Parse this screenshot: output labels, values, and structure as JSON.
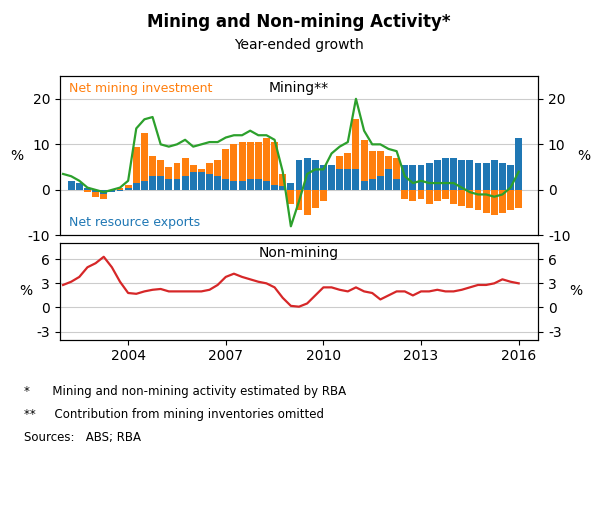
{
  "title": "Mining and Non-mining Activity*",
  "subtitle": "Year-ended growth",
  "notes": [
    "*      Mining and non-mining activity estimated by RBA",
    "**     Contribution from mining inventories omitted",
    "Sources:   ABS; RBA"
  ],
  "chart_data": [
    {
      "type": "bar",
      "title": "Mining**",
      "ylabel": "%",
      "y2label": "%",
      "xlim": [
        2001.9,
        2016.6
      ],
      "ylim": [
        -10,
        25
      ],
      "yticks": [
        -10,
        0,
        10,
        20
      ],
      "y2lim": [
        -10,
        25
      ],
      "y2ticks": [
        -10,
        0,
        10,
        20
      ],
      "grid": true,
      "tick_labels": "y",
      "series": [
        {
          "name": "Net mining investment",
          "type": "bar",
          "x": [
            2002.25,
            2002.5,
            2002.75,
            2003.0,
            2003.25,
            2003.5,
            2003.75,
            2004.0,
            2004.25,
            2004.5,
            2004.75,
            2005.0,
            2005.25,
            2005.5,
            2005.75,
            2006.0,
            2006.25,
            2006.5,
            2006.75,
            2007.0,
            2007.25,
            2007.5,
            2007.75,
            2008.0,
            2008.25,
            2008.5,
            2008.75,
            2009.0,
            2009.25,
            2009.5,
            2009.75,
            2010.0,
            2010.25,
            2010.5,
            2010.75,
            2011.0,
            2011.25,
            2011.5,
            2011.75,
            2012.0,
            2012.25,
            2012.5,
            2012.75,
            2013.0,
            2013.25,
            2013.5,
            2013.75,
            2014.0,
            2014.25,
            2014.5,
            2014.75,
            2015.0,
            2015.25,
            2015.5,
            2015.75,
            2016.0
          ],
          "values": [
            1.5,
            0.5,
            -0.5,
            -1.5,
            -2.0,
            -0.5,
            0.5,
            1.0,
            9.5,
            12.5,
            7.5,
            6.5,
            5.0,
            6.0,
            7.0,
            5.5,
            4.5,
            6.0,
            6.5,
            9.0,
            10.0,
            10.5,
            10.5,
            10.5,
            11.5,
            10.5,
            3.5,
            -3.0,
            -4.5,
            -5.5,
            -4.0,
            -2.5,
            5.5,
            7.5,
            8.0,
            15.5,
            11.0,
            8.5,
            8.5,
            7.5,
            7.0,
            -2.0,
            -2.5,
            -2.0,
            -3.0,
            -2.5,
            -2.0,
            -3.0,
            -3.5,
            -4.0,
            -4.5,
            -5.0,
            -5.5,
            -5.0,
            -4.5,
            -4.0
          ]
        },
        {
          "name": "Net resource exports",
          "type": "bar",
          "x": [
            2002.25,
            2002.5,
            2002.75,
            2003.0,
            2003.25,
            2003.5,
            2003.75,
            2004.0,
            2004.25,
            2004.5,
            2004.75,
            2005.0,
            2005.25,
            2005.5,
            2005.75,
            2006.0,
            2006.25,
            2006.5,
            2006.75,
            2007.0,
            2007.25,
            2007.5,
            2007.75,
            2008.0,
            2008.25,
            2008.5,
            2008.75,
            2009.0,
            2009.25,
            2009.5,
            2009.75,
            2010.0,
            2010.25,
            2010.5,
            2010.75,
            2011.0,
            2011.25,
            2011.5,
            2011.75,
            2012.0,
            2012.25,
            2012.5,
            2012.75,
            2013.0,
            2013.25,
            2013.5,
            2013.75,
            2014.0,
            2014.25,
            2014.5,
            2014.75,
            2015.0,
            2015.25,
            2015.5,
            2015.75,
            2016.0
          ],
          "values": [
            2.0,
            1.5,
            0.5,
            -0.5,
            -1.0,
            -0.5,
            -0.2,
            0.5,
            1.5,
            2.0,
            3.0,
            3.0,
            2.5,
            2.5,
            3.0,
            4.0,
            4.0,
            3.5,
            3.0,
            2.5,
            2.0,
            2.0,
            2.5,
            2.5,
            2.0,
            1.0,
            0.8,
            1.5,
            6.5,
            7.0,
            6.5,
            5.5,
            5.5,
            4.5,
            4.5,
            4.5,
            2.0,
            2.5,
            3.0,
            4.5,
            2.5,
            5.5,
            5.5,
            5.5,
            6.0,
            6.5,
            7.0,
            7.0,
            6.5,
            6.5,
            6.0,
            6.0,
            6.5,
            6.0,
            5.5,
            11.5
          ]
        },
        {
          "type": "line",
          "x": [
            2002.0,
            2002.25,
            2002.5,
            2002.75,
            2003.0,
            2003.25,
            2003.5,
            2003.75,
            2004.0,
            2004.25,
            2004.5,
            2004.75,
            2005.0,
            2005.25,
            2005.5,
            2005.75,
            2006.0,
            2006.25,
            2006.5,
            2006.75,
            2007.0,
            2007.25,
            2007.5,
            2007.75,
            2008.0,
            2008.25,
            2008.5,
            2008.75,
            2009.0,
            2009.25,
            2009.5,
            2009.75,
            2010.0,
            2010.25,
            2010.5,
            2010.75,
            2011.0,
            2011.25,
            2011.5,
            2011.75,
            2012.0,
            2012.25,
            2012.5,
            2012.75,
            2013.0,
            2013.25,
            2013.5,
            2013.75,
            2014.0,
            2014.25,
            2014.5,
            2014.75,
            2015.0,
            2015.25,
            2015.5,
            2015.75,
            2016.0
          ],
          "values": [
            3.5,
            3.0,
            2.0,
            0.5,
            0.0,
            -0.5,
            0.0,
            0.5,
            2.0,
            13.5,
            15.5,
            16.0,
            10.0,
            9.5,
            10.0,
            11.0,
            9.5,
            10.0,
            10.5,
            10.5,
            11.5,
            12.0,
            12.0,
            13.0,
            12.0,
            12.0,
            11.0,
            4.0,
            -8.0,
            -2.5,
            3.5,
            4.5,
            4.5,
            8.0,
            9.5,
            10.5,
            20.0,
            13.0,
            10.0,
            10.0,
            9.0,
            8.5,
            3.0,
            1.5,
            2.0,
            1.5,
            1.5,
            1.5,
            1.5,
            0.5,
            -0.5,
            -1.0,
            -1.0,
            -1.5,
            -1.0,
            0.5,
            4.0
          ]
        }
      ]
    },
    {
      "type": "line",
      "title": "Non-mining",
      "ylabel": "%",
      "y2label": "%",
      "xlim": [
        2001.9,
        2016.6
      ],
      "xticks": [
        2004,
        2007,
        2010,
        2013,
        2016
      ],
      "ylim": [
        -4,
        8
      ],
      "yticks": [
        -3,
        0,
        3,
        6
      ],
      "y2lim": [
        -4,
        8
      ],
      "y2ticks": [
        -3,
        0,
        3,
        6
      ],
      "grid": true,
      "x": [
        2002.0,
        2002.25,
        2002.5,
        2002.75,
        2003.0,
        2003.25,
        2003.5,
        2003.75,
        2004.0,
        2004.25,
        2004.5,
        2004.75,
        2005.0,
        2005.25,
        2005.5,
        2005.75,
        2006.0,
        2006.25,
        2006.5,
        2006.75,
        2007.0,
        2007.25,
        2007.5,
        2007.75,
        2008.0,
        2008.25,
        2008.5,
        2008.75,
        2009.0,
        2009.25,
        2009.5,
        2009.75,
        2010.0,
        2010.25,
        2010.5,
        2010.75,
        2011.0,
        2011.25,
        2011.5,
        2011.75,
        2012.0,
        2012.25,
        2012.5,
        2012.75,
        2013.0,
        2013.25,
        2013.5,
        2013.75,
        2014.0,
        2014.25,
        2014.5,
        2014.75,
        2015.0,
        2015.25,
        2015.5,
        2015.75,
        2016.0
      ],
      "series": [
        {
          "type": "line",
          "values": [
            2.8,
            3.2,
            3.8,
            5.0,
            5.5,
            6.3,
            5.0,
            3.2,
            1.8,
            1.7,
            2.0,
            2.2,
            2.3,
            2.0,
            2.0,
            2.0,
            2.0,
            2.0,
            2.2,
            2.8,
            3.8,
            4.2,
            3.8,
            3.5,
            3.2,
            3.0,
            2.5,
            1.2,
            0.2,
            0.1,
            0.5,
            1.5,
            2.5,
            2.5,
            2.2,
            2.0,
            2.5,
            2.0,
            1.8,
            1.0,
            1.5,
            2.0,
            2.0,
            1.5,
            2.0,
            2.0,
            2.2,
            2.0,
            2.0,
            2.2,
            2.5,
            2.8,
            2.8,
            3.0,
            3.5,
            3.2,
            3.0
          ]
        }
      ]
    }
  ]
}
